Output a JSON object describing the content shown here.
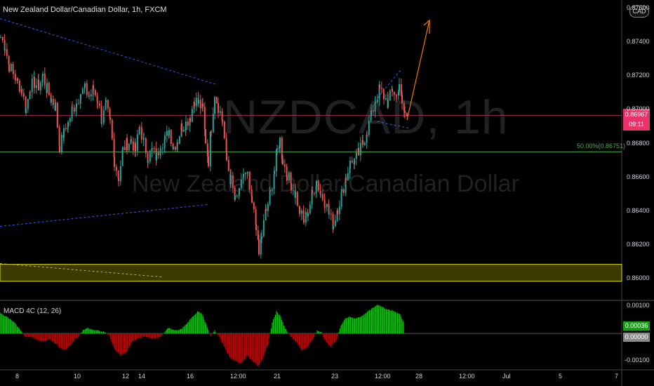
{
  "title": "New Zealand Dollar/Canadian Dollar, 1h, FXCM",
  "watermark": {
    "symbol": "NZDCAD, 1h",
    "name": "New Zealand Dollar/Canadian Dollar"
  },
  "currency_badge": "CAD",
  "indicator_label": "MACD 4C (12, 26)",
  "price_badge": {
    "price": "0.86967",
    "countdown": "09:11"
  },
  "fib_label": "50.00%(0.86751)",
  "macd_badges": {
    "value": "0.00036",
    "zero": "0.00000"
  },
  "colors": {
    "background": "#000000",
    "candle_up": "#26a69a",
    "candle_down": "#ef5350",
    "macd_up": "#00c800",
    "macd_down": "#c80000",
    "trendline": "#2962ff",
    "zone": "#6b6a00",
    "fib_line": "#4caf50",
    "current_price_line": "#e8346b",
    "arrow": "#f57c00"
  },
  "chart_data": {
    "type": "candlestick",
    "title": "New Zealand Dollar/Canadian Dollar, 1h, FXCM",
    "y_range": [
      0.8588,
      0.8765
    ],
    "y_ticks": [
      "0.87600",
      "0.87400",
      "0.87200",
      "0.87000",
      "0.86800",
      "0.86600",
      "0.86400",
      "0.86200",
      "0.86000"
    ],
    "x_ticks": [
      "8",
      "10",
      "12",
      "14",
      "16",
      "12:00",
      "21",
      "23",
      "12:00",
      "28",
      "12:00",
      "Jul",
      "5",
      "7"
    ],
    "current_price": 0.86967,
    "fib_level": 0.86751,
    "zone": [
      0.85985,
      0.86085
    ],
    "close_path": [
      [
        0,
        0.8743
      ],
      [
        6,
        0.8738
      ],
      [
        12,
        0.8726
      ],
      [
        18,
        0.8722
      ],
      [
        24,
        0.8716
      ],
      [
        30,
        0.8712
      ],
      [
        36,
        0.87
      ],
      [
        42,
        0.8714
      ],
      [
        48,
        0.8716
      ],
      [
        54,
        0.8714
      ],
      [
        60,
        0.872
      ],
      [
        66,
        0.8712
      ],
      [
        72,
        0.8706
      ],
      [
        78,
        0.8702
      ],
      [
        84,
        0.8678
      ],
      [
        90,
        0.8686
      ],
      [
        96,
        0.8692
      ],
      [
        102,
        0.87
      ],
      [
        108,
        0.8704
      ],
      [
        114,
        0.871
      ],
      [
        120,
        0.8712
      ],
      [
        126,
        0.8708
      ],
      [
        132,
        0.8712
      ],
      [
        138,
        0.8706
      ],
      [
        144,
        0.8694
      ],
      [
        150,
        0.8702
      ],
      [
        156,
        0.8692
      ],
      [
        162,
        0.867
      ],
      [
        168,
        0.866
      ],
      [
        174,
        0.8676
      ],
      [
        180,
        0.868
      ],
      [
        186,
        0.8682
      ],
      [
        192,
        0.8676
      ],
      [
        198,
        0.869
      ],
      [
        204,
        0.868
      ],
      [
        210,
        0.8672
      ],
      [
        216,
        0.8676
      ],
      [
        222,
        0.8672
      ],
      [
        228,
        0.868
      ],
      [
        234,
        0.8682
      ],
      [
        240,
        0.8688
      ],
      [
        246,
        0.8678
      ],
      [
        252,
        0.8682
      ],
      [
        258,
        0.869
      ],
      [
        264,
        0.8692
      ],
      [
        270,
        0.8696
      ],
      [
        276,
        0.8706
      ],
      [
        282,
        0.8704
      ],
      [
        288,
        0.87
      ],
      [
        292,
        0.8682
      ],
      [
        296,
        0.867
      ],
      [
        300,
        0.869
      ],
      [
        305,
        0.871
      ],
      [
        310,
        0.8702
      ],
      [
        316,
        0.8694
      ],
      [
        322,
        0.867
      ],
      [
        328,
        0.8658
      ],
      [
        334,
        0.8646
      ],
      [
        340,
        0.865
      ],
      [
        346,
        0.8662
      ],
      [
        352,
        0.866
      ],
      [
        358,
        0.8644
      ],
      [
        364,
        0.8632
      ],
      [
        368,
        0.8614
      ],
      [
        372,
        0.8626
      ],
      [
        378,
        0.864
      ],
      [
        384,
        0.865
      ],
      [
        390,
        0.8664
      ],
      [
        394,
        0.8676
      ],
      [
        398,
        0.8682
      ],
      [
        402,
        0.867
      ],
      [
        408,
        0.8662
      ],
      [
        414,
        0.8656
      ],
      [
        420,
        0.865
      ],
      [
        426,
        0.864
      ],
      [
        432,
        0.8634
      ],
      [
        438,
        0.864
      ],
      [
        444,
        0.865
      ],
      [
        450,
        0.8658
      ],
      [
        456,
        0.865
      ],
      [
        462,
        0.8646
      ],
      [
        468,
        0.8638
      ],
      [
        474,
        0.8632
      ],
      [
        480,
        0.8642
      ],
      [
        486,
        0.865
      ],
      [
        492,
        0.866
      ],
      [
        498,
        0.8668
      ],
      [
        504,
        0.867
      ],
      [
        510,
        0.8674
      ],
      [
        516,
        0.868
      ],
      [
        522,
        0.8688
      ],
      [
        528,
        0.8696
      ],
      [
        534,
        0.8706
      ],
      [
        540,
        0.8712
      ],
      [
        546,
        0.8708
      ],
      [
        552,
        0.8704
      ],
      [
        558,
        0.8712
      ],
      [
        564,
        0.8708
      ],
      [
        568,
        0.8716
      ],
      [
        572,
        0.8702
      ],
      [
        576,
        0.8698
      ],
      [
        580,
        0.8694
      ]
    ],
    "macd_path": [
      [
        0,
        0.00075
      ],
      [
        10,
        0.0006
      ],
      [
        20,
        0.0004
      ],
      [
        30,
        0.0001
      ],
      [
        36,
        -0.00015
      ],
      [
        42,
        -0.0001
      ],
      [
        50,
        -0.0002
      ],
      [
        60,
        -0.0003
      ],
      [
        70,
        -0.0002
      ],
      [
        80,
        -0.0004
      ],
      [
        90,
        -0.0006
      ],
      [
        96,
        -0.00055
      ],
      [
        104,
        -0.0003
      ],
      [
        112,
        -0.0001
      ],
      [
        118,
        0.0001
      ],
      [
        124,
        0.0002
      ],
      [
        130,
        0.00015
      ],
      [
        140,
        0.0001
      ],
      [
        150,
        5e-05
      ],
      [
        156,
        -0.0001
      ],
      [
        164,
        -0.0006
      ],
      [
        172,
        -0.0008
      ],
      [
        180,
        -0.0007
      ],
      [
        188,
        -0.0003
      ],
      [
        196,
        -0.0002
      ],
      [
        204,
        -0.0001
      ],
      [
        212,
        -0.00015
      ],
      [
        220,
        -0.0002
      ],
      [
        230,
        -0.0001
      ],
      [
        240,
        0.0002
      ],
      [
        250,
        0.0001
      ],
      [
        258,
        0.00015
      ],
      [
        266,
        0.00035
      ],
      [
        274,
        0.0006
      ],
      [
        282,
        0.0008
      ],
      [
        288,
        0.0007
      ],
      [
        294,
        0.0003
      ],
      [
        300,
        -0.0001
      ],
      [
        306,
        0.0001
      ],
      [
        312,
        -0.0001
      ],
      [
        320,
        -0.0005
      ],
      [
        328,
        -0.0009
      ],
      [
        336,
        -0.001
      ],
      [
        344,
        -0.0011
      ],
      [
        352,
        -0.0008
      ],
      [
        360,
        -0.001
      ],
      [
        368,
        -0.0012
      ],
      [
        376,
        -0.0008
      ],
      [
        382,
        -0.0004
      ],
      [
        388,
        0.0004
      ],
      [
        394,
        0.0008
      ],
      [
        400,
        0.0006
      ],
      [
        406,
        0.0002
      ],
      [
        414,
        -0.0001
      ],
      [
        422,
        -0.0003
      ],
      [
        430,
        -0.0006
      ],
      [
        438,
        -0.0005
      ],
      [
        446,
        -0.0002
      ],
      [
        452,
        0.0001
      ],
      [
        458,
        5e-05
      ],
      [
        464,
        -0.0003
      ],
      [
        472,
        -0.0005
      ],
      [
        480,
        -0.0002
      ],
      [
        486,
        0.0003
      ],
      [
        492,
        0.00055
      ],
      [
        498,
        0.0006
      ],
      [
        506,
        0.00055
      ],
      [
        514,
        0.0006
      ],
      [
        522,
        0.00075
      ],
      [
        530,
        0.0009
      ],
      [
        538,
        0.00105
      ],
      [
        546,
        0.00095
      ],
      [
        554,
        0.00085
      ],
      [
        562,
        0.0008
      ],
      [
        570,
        0.0007
      ],
      [
        576,
        0.00036
      ]
    ],
    "macd_range": [
      -0.00125,
      0.00115
    ],
    "macd_ticks": [
      "0.00100",
      "-0.00100"
    ]
  }
}
